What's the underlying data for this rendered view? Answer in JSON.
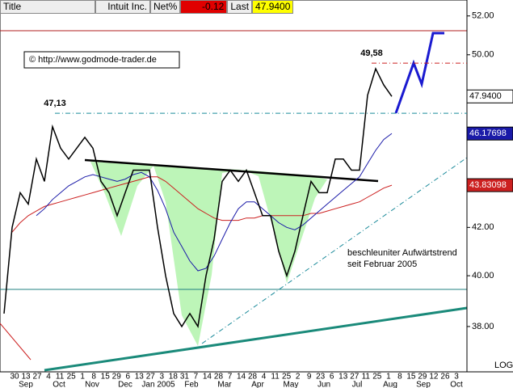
{
  "header": {
    "title": "Title",
    "symbol": "Intuit Inc.",
    "net_label": "Net%",
    "net_value": "-0.12",
    "last_label": "Last",
    "last_value": "47.9400"
  },
  "copyright": "© http://www.godmode-trader.de",
  "annotation": [
    "beschleuniter Aufwärtstrend",
    "seit Februar 2005"
  ],
  "chart_data": {
    "type": "line",
    "log_scale": true,
    "grid": false,
    "scale_label": "LOG",
    "ylim": [
      36.3,
      52.5
    ],
    "yticks": [
      {
        "value": 38,
        "label": "38.00"
      },
      {
        "value": 40,
        "label": "40.00"
      },
      {
        "value": 42,
        "label": "42.00"
      },
      {
        "value": 50,
        "label": "50.00"
      },
      {
        "value": 52,
        "label": "52.00"
      }
    ],
    "day_labels": [
      "30",
      "13",
      "27",
      "4",
      "11",
      "25",
      "1",
      "8",
      "15",
      "29",
      "6",
      "13",
      "27",
      "3",
      "18",
      "31",
      "7",
      "14",
      "28",
      "7",
      "14",
      "28",
      "4",
      "11",
      "25",
      "2",
      "9",
      "23",
      "6",
      "13",
      "27",
      "11",
      "25",
      "1",
      "8",
      "15",
      "29",
      "12",
      "26",
      "3"
    ],
    "month_labels": [
      "Sep",
      "Oct",
      "Nov",
      "Dec",
      "Jan 2005",
      "Feb",
      "Mar",
      "Apr",
      "May",
      "Jun",
      "Jul",
      "Aug",
      "Sep",
      "Oct"
    ],
    "series": [
      {
        "name": "Intuit Inc.",
        "color": "#000000",
        "values": [
          38.5,
          42,
          43.5,
          43,
          45,
          44,
          46.5,
          45.5,
          45,
          45.5,
          46,
          45.5,
          44,
          43.5,
          42.5,
          43.5,
          44.5,
          44.5,
          44.5,
          42,
          40,
          38.5,
          38,
          38.5,
          38,
          40,
          41.5,
          44,
          44.5,
          44,
          44.5,
          43.5,
          42.5,
          42.5,
          41,
          40,
          41,
          42.5,
          44,
          43.5,
          43.5,
          45,
          45,
          44.5,
          44.5,
          48,
          49.3,
          48.5,
          47.94
        ]
      },
      {
        "name": "MA blue",
        "color": "#1a1aa8",
        "values": [
          null,
          null,
          null,
          null,
          42.5,
          42.8,
          43.2,
          43.5,
          43.8,
          44,
          44.2,
          44.3,
          44.2,
          44.1,
          44,
          44.1,
          44.3,
          44.4,
          44.2,
          43.6,
          42.8,
          41.8,
          41.2,
          40.6,
          40.2,
          40.3,
          40.8,
          41.5,
          42.2,
          42.8,
          43.1,
          43.1,
          42.8,
          42.5,
          42.2,
          42,
          41.9,
          42.1,
          42.4,
          42.7,
          43,
          43.3,
          43.6,
          43.9,
          44.2,
          44.8,
          45.4,
          45.9,
          46.18
        ]
      },
      {
        "name": "MA red",
        "color": "#cc2020",
        "values": [
          null,
          41.8,
          42.2,
          42.5,
          42.7,
          42.9,
          43,
          43.1,
          43.2,
          43.3,
          43.4,
          43.5,
          43.6,
          43.7,
          43.8,
          43.9,
          44,
          44.1,
          44.2,
          44.2,
          44,
          43.7,
          43.4,
          43.1,
          42.8,
          42.6,
          42.4,
          42.3,
          42.3,
          42.3,
          42.4,
          42.4,
          42.5,
          42.5,
          42.5,
          42.5,
          42.5,
          42.5,
          42.6,
          42.6,
          42.7,
          42.8,
          42.9,
          43,
          43.1,
          43.3,
          43.5,
          43.7,
          43.83
        ]
      }
    ],
    "levels": [
      {
        "value": 47.13,
        "label": "47,13"
      },
      {
        "value": 49.58,
        "label": "49,58"
      }
    ],
    "price_tags": [
      {
        "value": 47.94,
        "label": "47.9400",
        "color": "#ffffff"
      },
      {
        "value": 46.17698,
        "label": "46.17698",
        "color": "#1a1aa8"
      },
      {
        "value": 43.83098,
        "label": "43.83098",
        "color": "#cc2020"
      }
    ]
  }
}
